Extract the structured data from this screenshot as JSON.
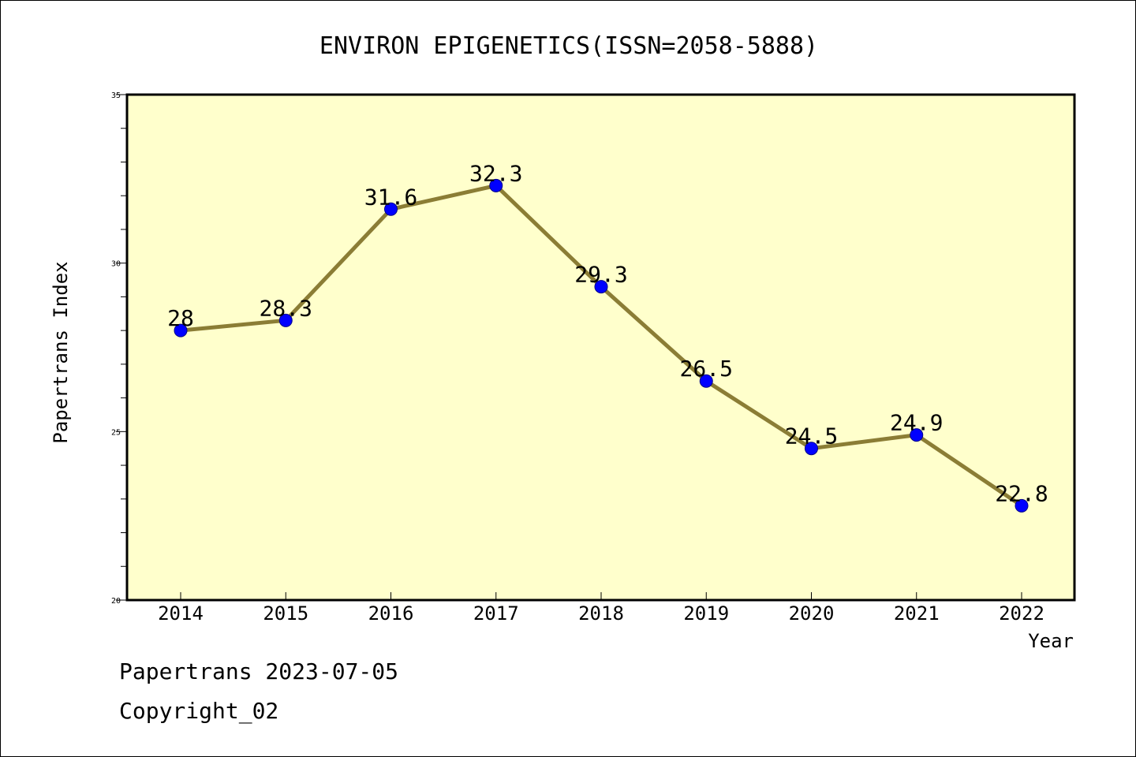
{
  "chart_data": {
    "type": "line",
    "title": "ENVIRON EPIGENETICS(ISSN=2058-5888)",
    "xlabel": "Year",
    "ylabel": "Papertrans Index",
    "categories": [
      "2014",
      "2015",
      "2016",
      "2017",
      "2018",
      "2019",
      "2020",
      "2021",
      "2022"
    ],
    "series": [
      {
        "values": [
          28,
          28.3,
          31.6,
          32.3,
          29.3,
          26.5,
          24.5,
          24.9,
          22.8
        ],
        "data_labels": [
          "28",
          "28.3",
          "31.6",
          "32.3",
          "29.3",
          "26.5",
          "24.5",
          "24.9",
          "22.8"
        ]
      }
    ],
    "ylim": [
      20,
      35
    ],
    "yticks": [
      "20",
      "25",
      "30",
      "35"
    ],
    "grid": false,
    "colors": {
      "plot_background": "#ffffcc",
      "line": "#8b7d35",
      "marker": "#0000ff"
    }
  },
  "footer": {
    "source": "Papertrans 2023-07-05",
    "copyright": "Copyright_02"
  }
}
